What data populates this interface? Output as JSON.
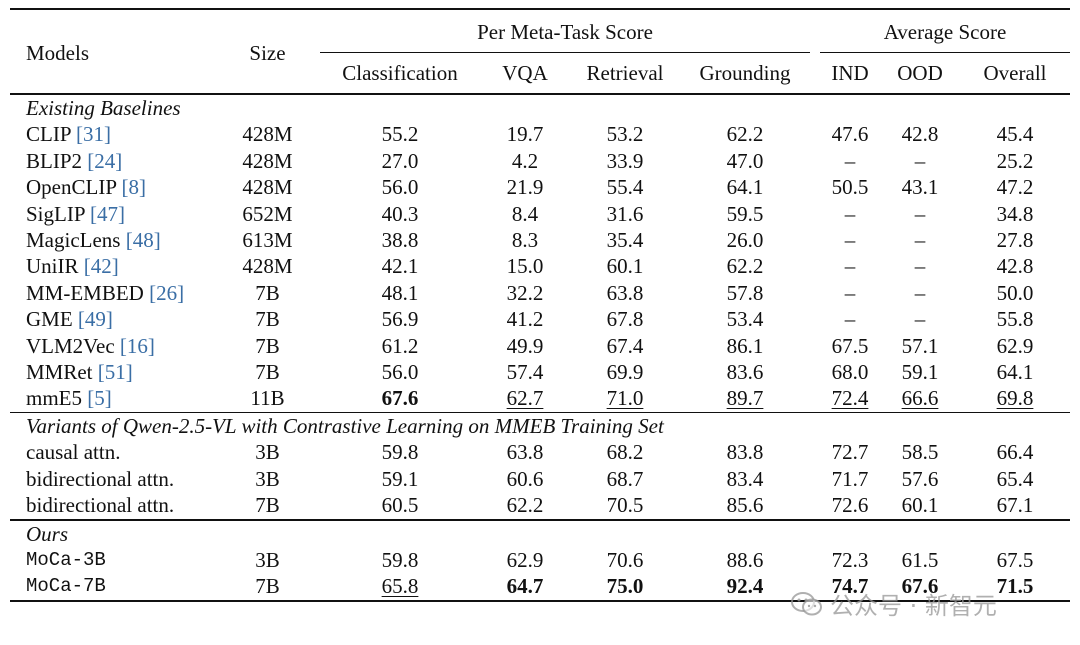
{
  "table": {
    "headers": {
      "models": "Models",
      "size": "Size",
      "group_meta": "Per Meta-Task Score",
      "group_avg": "Average Score",
      "classification": "Classification",
      "vqa": "VQA",
      "retrieval": "Retrieval",
      "grounding": "Grounding",
      "ind": "IND",
      "ood": "OOD",
      "overall": "Overall"
    },
    "sections": [
      {
        "title": "Existing Baselines",
        "rows": [
          {
            "name": "CLIP",
            "ref": "31",
            "size": "428M",
            "cls": "55.2",
            "vqa": "19.7",
            "ret": "53.2",
            "gro": "62.2",
            "ind": "47.6",
            "ood": "42.8",
            "overall": "45.4"
          },
          {
            "name": "BLIP2",
            "ref": "24",
            "size": "428M",
            "cls": "27.0",
            "vqa": "4.2",
            "ret": "33.9",
            "gro": "47.0",
            "ind": "–",
            "ood": "–",
            "overall": "25.2"
          },
          {
            "name": "OpenCLIP",
            "ref": "8",
            "size": "428M",
            "cls": "56.0",
            "vqa": "21.9",
            "ret": "55.4",
            "gro": "64.1",
            "ind": "50.5",
            "ood": "43.1",
            "overall": "47.2"
          },
          {
            "name": "SigLIP",
            "ref": "47",
            "size": "652M",
            "cls": "40.3",
            "vqa": "8.4",
            "ret": "31.6",
            "gro": "59.5",
            "ind": "–",
            "ood": "–",
            "overall": "34.8"
          },
          {
            "name": "MagicLens",
            "ref": "48",
            "size": "613M",
            "cls": "38.8",
            "vqa": "8.3",
            "ret": "35.4",
            "gro": "26.0",
            "ind": "–",
            "ood": "–",
            "overall": "27.8"
          },
          {
            "name": "UniIR",
            "ref": "42",
            "size": "428M",
            "cls": "42.1",
            "vqa": "15.0",
            "ret": "60.1",
            "gro": "62.2",
            "ind": "–",
            "ood": "–",
            "overall": "42.8"
          },
          {
            "name": "MM-EMBED",
            "ref": "26",
            "size": "7B",
            "cls": "48.1",
            "vqa": "32.2",
            "ret": "63.8",
            "gro": "57.8",
            "ind": "–",
            "ood": "–",
            "overall": "50.0"
          },
          {
            "name": "GME",
            "ref": "49",
            "size": "7B",
            "cls": "56.9",
            "vqa": "41.2",
            "ret": "67.8",
            "gro": "53.4",
            "ind": "–",
            "ood": "–",
            "overall": "55.8"
          },
          {
            "name": "VLM2Vec",
            "ref": "16",
            "size": "7B",
            "cls": "61.2",
            "vqa": "49.9",
            "ret": "67.4",
            "gro": "86.1",
            "ind": "67.5",
            "ood": "57.1",
            "overall": "62.9"
          },
          {
            "name": "MMRet",
            "ref": "51",
            "size": "7B",
            "cls": "56.0",
            "vqa": "57.4",
            "ret": "69.9",
            "gro": "83.6",
            "ind": "68.0",
            "ood": "59.1",
            "overall": "64.1"
          },
          {
            "name": "mmE5",
            "ref": "5",
            "size": "11B",
            "cls": "67.6",
            "vqa": "62.7",
            "ret": "71.0",
            "gro": "89.7",
            "ind": "72.4",
            "ood": "66.6",
            "overall": "69.8"
          }
        ]
      },
      {
        "title": "Variants of Qwen-2.5-VL with Contrastive Learning on MMEB Training Set",
        "rows": [
          {
            "name": "causal attn.",
            "size": "3B",
            "cls": "59.8",
            "vqa": "63.8",
            "ret": "68.2",
            "gro": "83.8",
            "ind": "72.7",
            "ood": "58.5",
            "overall": "66.4"
          },
          {
            "name": "bidirectional attn.",
            "size": "3B",
            "cls": "59.1",
            "vqa": "60.6",
            "ret": "68.7",
            "gro": "83.4",
            "ind": "71.7",
            "ood": "57.6",
            "overall": "65.4"
          },
          {
            "name": "bidirectional attn.",
            "size": "7B",
            "cls": "60.5",
            "vqa": "62.2",
            "ret": "70.5",
            "gro": "85.6",
            "ind": "72.6",
            "ood": "60.1",
            "overall": "67.1"
          }
        ]
      },
      {
        "title": "Ours",
        "rows": [
          {
            "name": "MoCa-3B",
            "size": "3B",
            "cls": "59.8",
            "vqa": "62.9",
            "ret": "70.6",
            "gro": "88.6",
            "ind": "72.3",
            "ood": "61.5",
            "overall": "67.5"
          },
          {
            "name": "MoCa-7B",
            "size": "7B",
            "cls": "65.8",
            "vqa": "64.7",
            "ret": "75.0",
            "gro": "92.4",
            "ind": "74.7",
            "ood": "67.6",
            "overall": "71.5"
          }
        ]
      }
    ]
  },
  "watermark": {
    "text": "公众号 · 新智元",
    "icon": "wechat-icon"
  }
}
